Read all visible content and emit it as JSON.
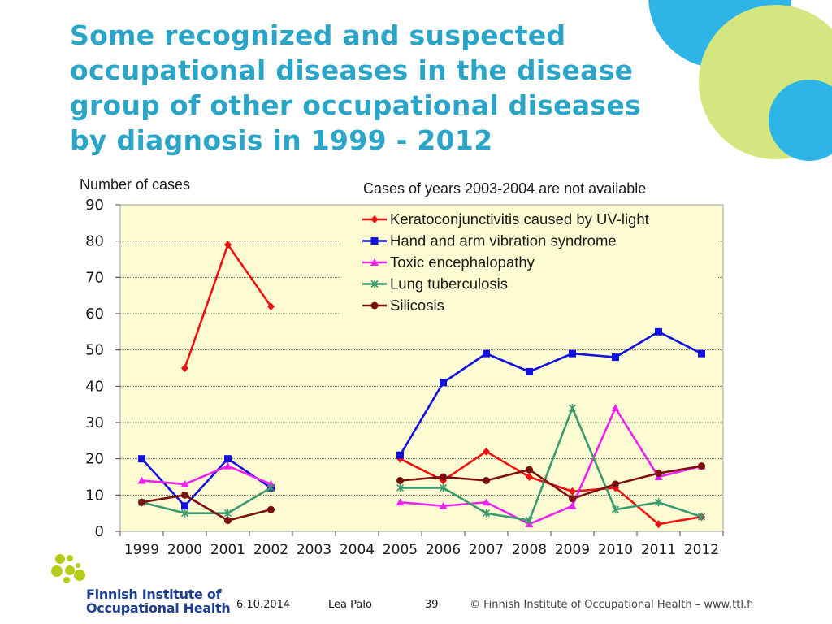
{
  "slide": {
    "title_lines": [
      "Some recognized and suspected",
      "occupational diseases in the disease",
      "group of other occupational diseases",
      "by diagnosis in 1999 - 2012"
    ]
  },
  "footer": {
    "date": "6.10.2014",
    "author": "Lea Palo",
    "page": "39",
    "copyright": "© Finnish Institute of Occupational Health   –   www.ttl.fi"
  },
  "logo": {
    "line1": "Finnish Institute of",
    "line2": "Occupational Health"
  },
  "colors": {
    "title": "#2aa5c8",
    "plot_bg": "#fdfbd2",
    "deco_blue": "#2eb4e6",
    "deco_lime": "#d4e680",
    "logo_green": "#b5cc18",
    "logo_blue": "#1d3f8f"
  },
  "chart_data": {
    "type": "line",
    "ylabel": "Number of cases",
    "note": "Cases of years 2003-2004 are not available",
    "ylim": [
      0,
      90
    ],
    "yticks": [
      0,
      10,
      20,
      30,
      40,
      50,
      60,
      70,
      80,
      90
    ],
    "categories": [
      "1999",
      "2000",
      "2001",
      "2002",
      "2003",
      "2004",
      "2005",
      "2006",
      "2007",
      "2008",
      "2009",
      "2010",
      "2011",
      "2012"
    ],
    "legend_position": "top-right",
    "series": [
      {
        "name": "Keratoconjunctivitis caused by UV-light",
        "color": "#ee1111",
        "marker": "diamond",
        "values": [
          null,
          45,
          79,
          62,
          null,
          null,
          20,
          14,
          22,
          15,
          11,
          12,
          2,
          4
        ]
      },
      {
        "name": "Hand and arm vibration syndrome",
        "color": "#1111dd",
        "marker": "square",
        "values": [
          20,
          7,
          20,
          12,
          null,
          null,
          21,
          41,
          49,
          44,
          49,
          48,
          55,
          49
        ]
      },
      {
        "name": "Toxic encephalopathy",
        "color": "#ee22ee",
        "marker": "triangle",
        "values": [
          14,
          13,
          18,
          13,
          null,
          null,
          8,
          7,
          8,
          2,
          7,
          34,
          15,
          18
        ]
      },
      {
        "name": "Lung tuberculosis",
        "color": "#3a9a70",
        "marker": "star",
        "values": [
          8,
          5,
          5,
          12,
          null,
          null,
          12,
          12,
          5,
          3,
          34,
          6,
          8,
          4
        ]
      },
      {
        "name": "Silicosis",
        "color": "#7a1010",
        "marker": "circle",
        "values": [
          8,
          10,
          3,
          6,
          null,
          null,
          14,
          15,
          14,
          17,
          9,
          13,
          16,
          18
        ]
      }
    ]
  }
}
